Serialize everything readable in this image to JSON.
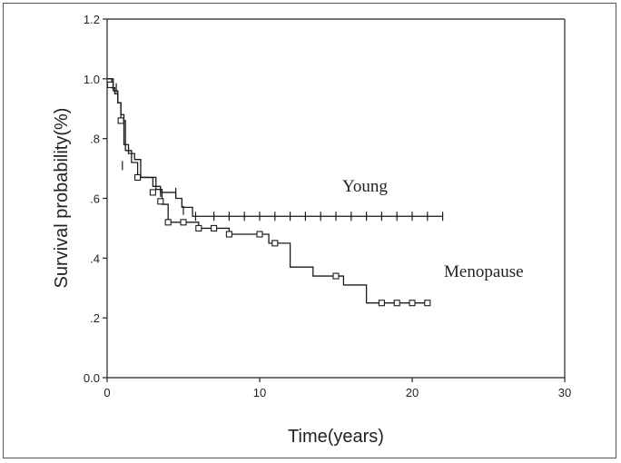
{
  "chart_data": {
    "type": "line",
    "title": "",
    "xlabel": "Time(years)",
    "ylabel": "Survival probability(%)",
    "xlim": [
      0,
      30
    ],
    "ylim": [
      0.0,
      1.2
    ],
    "xticks": [
      0,
      10,
      20,
      30
    ],
    "xtick_labels": [
      "0",
      "10",
      "20",
      "30"
    ],
    "yticks": [
      0.0,
      0.2,
      0.4,
      0.6,
      0.8,
      1.0,
      1.2
    ],
    "ytick_labels": [
      "0.0",
      ".2",
      ".4",
      ".6",
      ".8",
      "1.0",
      "1.2"
    ],
    "grid": false,
    "series": [
      {
        "name": "Young",
        "color": "#1a1a1a",
        "censor_marker": "plus",
        "steps": [
          [
            0,
            1.0
          ],
          [
            0.3,
            0.97
          ],
          [
            0.5,
            0.95
          ],
          [
            0.7,
            0.92
          ],
          [
            0.9,
            0.88
          ],
          [
            1.1,
            0.78
          ],
          [
            1.4,
            0.75
          ],
          [
            1.8,
            0.73
          ],
          [
            2.2,
            0.67
          ],
          [
            3.0,
            0.64
          ],
          [
            3.5,
            0.62
          ],
          [
            4.5,
            0.6
          ],
          [
            4.9,
            0.57
          ],
          [
            5.6,
            0.54
          ],
          [
            22.0,
            0.54
          ]
        ],
        "censored": [
          [
            0.6,
            0.97
          ],
          [
            1.0,
            0.71
          ],
          [
            3.5,
            0.62
          ],
          [
            4.5,
            0.62
          ],
          [
            5.0,
            0.56
          ],
          [
            5.8,
            0.54
          ],
          [
            7.0,
            0.54
          ],
          [
            8.0,
            0.54
          ],
          [
            9.0,
            0.54
          ],
          [
            10.0,
            0.54
          ],
          [
            11.0,
            0.54
          ],
          [
            12.0,
            0.54
          ],
          [
            13.0,
            0.54
          ],
          [
            14.0,
            0.54
          ],
          [
            15.0,
            0.54
          ],
          [
            16.0,
            0.54
          ],
          [
            17.0,
            0.54
          ],
          [
            18.0,
            0.54
          ],
          [
            19.0,
            0.54
          ],
          [
            20.0,
            0.54
          ],
          [
            21.0,
            0.54
          ],
          [
            22.0,
            0.54
          ]
        ]
      },
      {
        "name": "Menopause",
        "color": "#1a1a1a",
        "censor_marker": "square",
        "steps": [
          [
            0,
            1.0
          ],
          [
            0.4,
            0.96
          ],
          [
            0.7,
            0.92
          ],
          [
            0.9,
            0.86
          ],
          [
            1.2,
            0.76
          ],
          [
            1.6,
            0.72
          ],
          [
            2.0,
            0.67
          ],
          [
            3.2,
            0.63
          ],
          [
            3.6,
            0.58
          ],
          [
            4.0,
            0.52
          ],
          [
            6.0,
            0.5
          ],
          [
            8.0,
            0.48
          ],
          [
            10.0,
            0.48
          ],
          [
            10.6,
            0.45
          ],
          [
            12.0,
            0.37
          ],
          [
            13.5,
            0.34
          ],
          [
            15.5,
            0.31
          ],
          [
            17.0,
            0.25
          ],
          [
            21.0,
            0.25
          ]
        ],
        "censored": [
          [
            0.2,
            0.98
          ],
          [
            0.9,
            0.86
          ],
          [
            2.0,
            0.67
          ],
          [
            3.0,
            0.62
          ],
          [
            3.5,
            0.59
          ],
          [
            4.0,
            0.52
          ],
          [
            5.0,
            0.52
          ],
          [
            6.0,
            0.5
          ],
          [
            7.0,
            0.5
          ],
          [
            8.0,
            0.48
          ],
          [
            10.0,
            0.48
          ],
          [
            11.0,
            0.45
          ],
          [
            15.0,
            0.34
          ],
          [
            18.0,
            0.25
          ],
          [
            19.0,
            0.25
          ],
          [
            20.0,
            0.25
          ],
          [
            21.0,
            0.25
          ]
        ]
      }
    ]
  }
}
